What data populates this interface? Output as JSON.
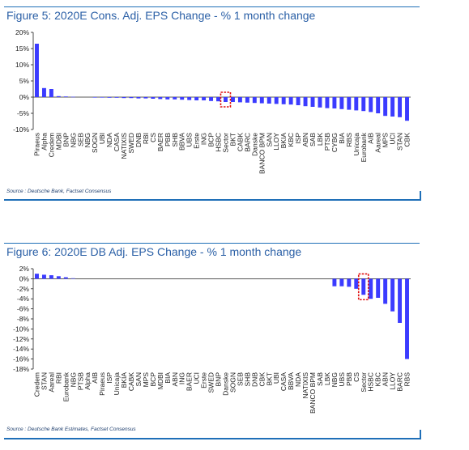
{
  "figures": [
    {
      "title": "Figure 5: 2020E Cons. Adj. EPS Change - % 1 month change",
      "source": "Source : Deutsche Bank, Factset Consensus",
      "highlight_category": "Sector",
      "colors": {
        "bar": "#3b3bff",
        "title": "#2a5fa6",
        "highlight": "#e01010",
        "axis": "#1f1f1f"
      },
      "chart_data": {
        "type": "bar",
        "categories": [
          "Piraeus",
          "Alpha",
          "Credem",
          "MDBI",
          "BNP",
          "NBG",
          "SEB",
          "NBG",
          "SOGN",
          "UBI",
          "NDA",
          "CASA",
          "NATIXIS",
          "SWED",
          "DNB",
          "RBI",
          "CS",
          "BAER",
          "PBB",
          "SHB",
          "BBVA",
          "UBS",
          "Erste",
          "ING",
          "BCP",
          "HSBC",
          "Sector",
          "BKT",
          "CABK",
          "BARC",
          "Danske",
          "BANCO BPM",
          "SAN",
          "LLOY",
          "BKIA",
          "KBC",
          "ISP",
          "ABN",
          "SAB",
          "LBK",
          "PTSB",
          "CYBG",
          "BIA",
          "RBS",
          "Unicaja",
          "Eurobank",
          "AIB",
          "Aareal",
          "MPS",
          "UCI",
          "STAN",
          "CBK"
        ],
        "values": [
          16.5,
          2.8,
          2.5,
          0.3,
          0.2,
          0.1,
          0.0,
          0.0,
          -0.1,
          -0.1,
          -0.2,
          -0.2,
          -0.3,
          -0.3,
          -0.4,
          -0.4,
          -0.5,
          -0.6,
          -0.7,
          -0.7,
          -0.8,
          -0.9,
          -1.0,
          -1.0,
          -1.2,
          -1.3,
          -1.5,
          -1.5,
          -1.6,
          -1.7,
          -1.8,
          -1.9,
          -2.0,
          -2.1,
          -2.2,
          -2.3,
          -2.5,
          -2.8,
          -3.0,
          -3.2,
          -3.4,
          -3.5,
          -3.7,
          -3.9,
          -4.1,
          -4.3,
          -4.6,
          -5.0,
          -5.8,
          -6.0,
          -6.2,
          -7.3
        ],
        "yticks": [
          "20%",
          "15%",
          "10%",
          "5%",
          "0%",
          "-5%",
          "-10%"
        ],
        "ylim": [
          -10,
          20
        ],
        "title": "Figure 5: 2020E Cons. Adj. EPS Change - % 1 month change"
      }
    },
    {
      "title": "Figure 6: 2020E DB Adj. EPS Change - % 1 month change",
      "source": "Source : Deutsche Bank Estimates, Factset Consensus",
      "highlight_category": "Sector",
      "colors": {
        "bar": "#3b3bff",
        "title": "#2a5fa6",
        "highlight": "#e01010",
        "axis": "#1f1f1f"
      },
      "chart_data": {
        "type": "bar",
        "categories": [
          "Credem",
          "STAN",
          "Aareal",
          "RBI",
          "Eurobank",
          "NBG",
          "PTSB",
          "Alpha",
          "AIB",
          "Piraeus",
          "ISP",
          "Unicaja",
          "BKIA",
          "CABK",
          "SAN",
          "MPS",
          "BCP",
          "MDBI",
          "BIA",
          "ABN",
          "ING",
          "BAER",
          "UCI",
          "Erste",
          "SWED",
          "BNP",
          "Danske",
          "SOGN",
          "SEB",
          "SHB",
          "DNB",
          "CBK",
          "BKT",
          "UBI",
          "CASA",
          "BBVA",
          "NDA",
          "NATIXIS",
          "BANCO BPM",
          "SAB",
          "LBK",
          "NBG",
          "UBS",
          "PBB",
          "CS",
          "Sector",
          "HSBC",
          "KBC",
          "ABN",
          "LLOY",
          "BARC",
          "RBS"
        ],
        "values": [
          1.0,
          0.8,
          0.7,
          0.5,
          0.3,
          0.1,
          0.0,
          0.0,
          0.0,
          0.0,
          0.0,
          0.0,
          0.0,
          0.0,
          0.0,
          0.0,
          0.0,
          0.0,
          0.0,
          0.0,
          0.0,
          0.0,
          0.0,
          0.0,
          0.0,
          0.0,
          0.0,
          0.0,
          0.0,
          0.0,
          0.0,
          0.0,
          0.0,
          0.0,
          0.0,
          0.0,
          0.0,
          0.0,
          0.0,
          0.0,
          0.0,
          -1.5,
          -1.5,
          -1.6,
          -2.0,
          -3.2,
          -4.0,
          -3.8,
          -5.0,
          -6.5,
          -8.8,
          -16.0
        ],
        "yticks": [
          "2%",
          "0%",
          "-2%",
          "-4%",
          "-6%",
          "-8%",
          "-10%",
          "-12%",
          "-14%",
          "-16%",
          "-18%"
        ],
        "ylim": [
          -18,
          2
        ],
        "title": "Figure 6: 2020E DB Adj. EPS Change - % 1 month change"
      }
    }
  ]
}
